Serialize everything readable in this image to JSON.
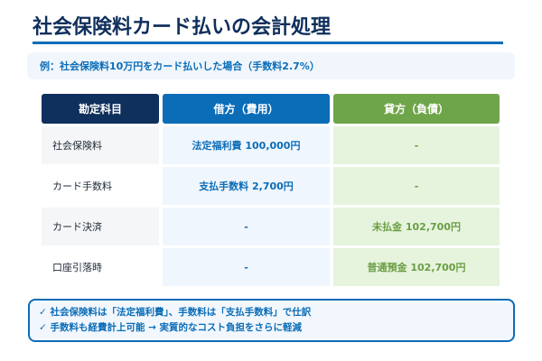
{
  "title": "社会保険料カード払いの会計処理",
  "example": "例：社会保険料10万円をカード払いした場合（手数料2.7%）",
  "table": {
    "headers": {
      "account": "勘定科目",
      "debit": "借方（費用）",
      "credit": "貸方（負債）"
    },
    "rows": [
      {
        "account": "社会保険料",
        "debit": "法定福利費 100,000円",
        "credit": "-"
      },
      {
        "account": "カード手数料",
        "debit": "支払手数料 2,700円",
        "credit": "-"
      },
      {
        "account": "カード決済",
        "debit": "-",
        "credit": "未払金 102,700円"
      },
      {
        "account": "口座引落時",
        "debit": "-",
        "credit": "普通預金 102,700円"
      }
    ]
  },
  "notes": [
    "✓ 社会保険料は「法定福利費」、手数料は「支払手数料」で仕訳",
    "✓ 手数料も経費計上可能 → 実質的なコスト負担をさらに軽減"
  ],
  "colors": {
    "navy": "#0f2f5c",
    "blue": "#0b6db8",
    "green": "#6fa54a",
    "light_blue_bg": "#f0f6fd",
    "light_green_bg": "#e6f3dd"
  }
}
